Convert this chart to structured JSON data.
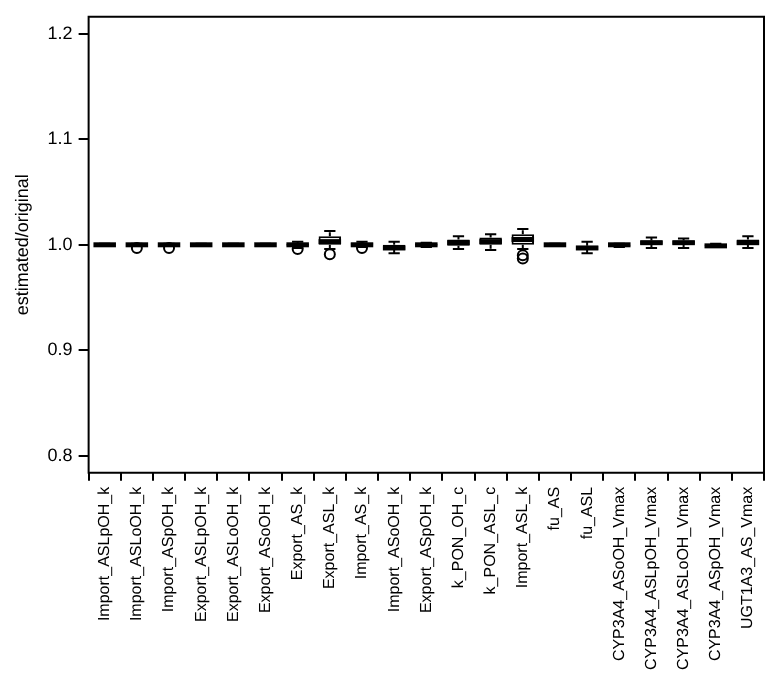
{
  "chart_data": {
    "type": "box",
    "ylabel": "estimated/original",
    "color": "#000000",
    "categories": [
      "Import_ASLpOH_k",
      "Import_ASLoOH_k",
      "Import_ASpOH_k",
      "Export_ASLpOH_k",
      "Export_ASLoOH_k",
      "Export_ASoOH_k",
      "Export_AS_k",
      "Export_ASL_k",
      "Import_AS_k",
      "Import_ASoOH_k",
      "Export_ASpOH_k",
      "k_PON_OH_c",
      "k_PON_ASL_c",
      "Import_ASL_k",
      "fu_AS",
      "fu_ASL",
      "CYP3A4_ASoOH_Vmax",
      "CYP3A4_ASLpOH_Vmax",
      "CYP3A4_ASLoOH_Vmax",
      "CYP3A4_ASpOH_Vmax",
      "UGT1A3_AS_Vmax"
    ],
    "boxes": [
      {
        "low": 0.999,
        "q1": 1.0,
        "median": 1.0,
        "q3": 1.0,
        "high": 1.001
      },
      {
        "low": 0.999,
        "q1": 1.0,
        "median": 1.0,
        "q3": 1.0,
        "high": 1.001,
        "outliers": [
          0.997
        ]
      },
      {
        "low": 0.999,
        "q1": 1.0,
        "median": 1.0,
        "q3": 1.0,
        "high": 1.001,
        "outliers": [
          0.997
        ]
      },
      {
        "low": 0.999,
        "q1": 1.0,
        "median": 1.0,
        "q3": 1.0,
        "high": 1.001
      },
      {
        "low": 0.999,
        "q1": 1.0,
        "median": 1.0,
        "q3": 1.0,
        "high": 1.001
      },
      {
        "low": 0.999,
        "q1": 1.0,
        "median": 1.0,
        "q3": 1.0,
        "high": 1.001
      },
      {
        "low": 0.997,
        "q1": 0.999,
        "median": 1.0,
        "q3": 1.001,
        "high": 1.003,
        "outliers": [
          0.996
        ]
      },
      {
        "low": 0.996,
        "q1": 1.0,
        "median": 1.003,
        "q3": 1.008,
        "high": 1.013,
        "outliers": [
          0.991
        ]
      },
      {
        "low": 0.998,
        "q1": 0.999,
        "median": 1.0,
        "q3": 1.002,
        "high": 1.003,
        "outliers": [
          0.997
        ]
      },
      {
        "low": 0.992,
        "q1": 0.995,
        "median": 0.997,
        "q3": 1.0,
        "high": 1.003
      },
      {
        "low": 0.998,
        "q1": 0.999,
        "median": 1.0,
        "q3": 1.001,
        "high": 1.002
      },
      {
        "low": 0.996,
        "q1": 0.999,
        "median": 1.002,
        "q3": 1.005,
        "high": 1.008
      },
      {
        "low": 0.995,
        "q1": 1.0,
        "median": 1.003,
        "q3": 1.007,
        "high": 1.01
      },
      {
        "low": 0.996,
        "q1": 1.0,
        "median": 1.005,
        "q3": 1.01,
        "high": 1.015,
        "outliers": [
          0.99,
          0.987
        ]
      },
      {
        "low": 0.999,
        "q1": 1.0,
        "median": 1.0,
        "q3": 1.0,
        "high": 1.001
      },
      {
        "low": 0.992,
        "q1": 0.995,
        "median": 0.997,
        "q3": 0.999,
        "high": 1.003
      },
      {
        "low": 0.998,
        "q1": 0.999,
        "median": 1.0,
        "q3": 1.0,
        "high": 1.001
      },
      {
        "low": 0.997,
        "q1": 1.0,
        "median": 1.002,
        "q3": 1.004,
        "high": 1.007
      },
      {
        "low": 0.997,
        "q1": 1.0,
        "median": 1.002,
        "q3": 1.004,
        "high": 1.006
      },
      {
        "low": 0.998,
        "q1": 0.999,
        "median": 0.999,
        "q3": 1.0,
        "high": 1.001
      },
      {
        "low": 0.997,
        "q1": 1.0,
        "median": 1.002,
        "q3": 1.005,
        "high": 1.008
      }
    ],
    "ylim": [
      0.784,
      1.216
    ],
    "yticks": [
      {
        "value": 0.8,
        "label": "0.8"
      },
      {
        "value": 0.9,
        "label": "0.9"
      },
      {
        "value": 1,
        "label": "1.0"
      },
      {
        "value": 1.1,
        "label": "1.1"
      },
      {
        "value": 1.2,
        "label": "1.2"
      }
    ]
  }
}
